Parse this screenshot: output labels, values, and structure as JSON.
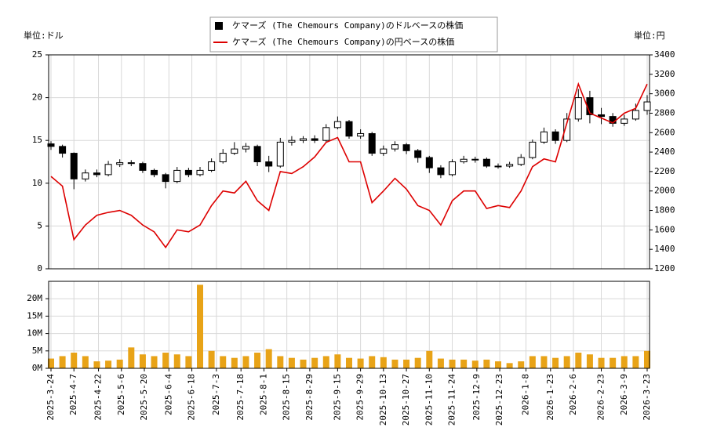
{
  "chart_data": [
    {
      "type": "candlestick",
      "ylabel": "単位:ドル",
      "y2label": "単位:円",
      "x": [
        "2025-3-24",
        "2025-3-31",
        "2025-4-7",
        "2025-4-14",
        "2025-4-21",
        "2025-4-28",
        "2025-5-5",
        "2025-5-12",
        "2025-5-19",
        "2025-5-26",
        "2025-6-2",
        "2025-6-9",
        "2025-6-16",
        "2025-6-23",
        "2025-6-30",
        "2025-7-7",
        "2025-7-14",
        "2025-7-21",
        "2025-7-28",
        "2025-8-4",
        "2025-8-11",
        "2025-8-18",
        "2025-8-25",
        "2025-9-1",
        "2025-9-8",
        "2025-9-15",
        "2025-9-22",
        "2025-9-29",
        "2025-10-6",
        "2025-10-13",
        "2025-10-20",
        "2025-10-27",
        "2025-11-3",
        "2025-11-10",
        "2025-11-17",
        "2025-11-24",
        "2025-12-1",
        "2025-12-8",
        "2025-12-15",
        "2025-12-22",
        "2025-12-29",
        "2026-1-5",
        "2026-1-12",
        "2026-1-19",
        "2026-1-26",
        "2026-2-2",
        "2026-2-9",
        "2026-2-16",
        "2026-2-23",
        "2026-3-2",
        "2026-3-9",
        "2026-3-16",
        "2026-3-23"
      ],
      "series": [
        {
          "name": "ケマーズ (The Chemours Company)のドルベースの株価",
          "color": "#000000",
          "open": [
            14.6,
            14.3,
            13.5,
            10.5,
            11.2,
            11.0,
            12.2,
            12.4,
            12.3,
            11.5,
            11.0,
            10.2,
            11.5,
            11.0,
            11.5,
            12.5,
            13.5,
            14.0,
            14.3,
            12.5,
            12.0,
            14.8,
            15.0,
            15.2,
            15.0,
            16.5,
            17.2,
            15.5,
            15.8,
            13.5,
            14.0,
            14.5,
            13.8,
            13.0,
            11.8,
            11.0,
            12.5,
            12.8,
            12.8,
            12.0,
            12.0,
            12.2,
            13.0,
            14.8,
            16.0,
            15.0,
            17.5,
            20.0,
            18.0,
            17.8,
            17.0,
            17.5,
            18.5
          ],
          "high": [
            14.9,
            14.5,
            13.6,
            11.6,
            11.6,
            12.6,
            12.8,
            12.7,
            12.5,
            11.7,
            11.2,
            11.9,
            11.8,
            11.9,
            12.9,
            14.0,
            14.8,
            14.7,
            14.5,
            13.2,
            15.3,
            15.5,
            15.5,
            15.6,
            16.9,
            17.8,
            17.4,
            16.3,
            16.0,
            14.4,
            14.9,
            14.7,
            14.0,
            13.2,
            12.1,
            12.8,
            13.2,
            13.1,
            13.0,
            12.3,
            12.5,
            13.4,
            15.1,
            16.5,
            16.3,
            18.2,
            21.0,
            20.8,
            18.8,
            18.2,
            18.0,
            19.3,
            20.3
          ],
          "low": [
            13.9,
            13.0,
            9.3,
            10.2,
            10.7,
            10.8,
            11.9,
            12.0,
            11.2,
            10.7,
            9.4,
            10.0,
            10.7,
            10.8,
            11.3,
            12.3,
            13.3,
            13.6,
            12.0,
            11.3,
            11.8,
            14.4,
            14.7,
            14.7,
            14.8,
            16.3,
            15.2,
            15.2,
            13.2,
            13.2,
            13.7,
            13.4,
            12.4,
            11.2,
            10.6,
            10.8,
            12.3,
            12.4,
            11.8,
            11.7,
            11.8,
            12.0,
            12.8,
            14.6,
            14.6,
            14.8,
            17.2,
            17.0,
            16.9,
            16.6,
            16.7,
            17.3,
            18.0
          ],
          "close": [
            14.3,
            13.5,
            10.5,
            11.2,
            11.0,
            12.2,
            12.4,
            12.3,
            11.5,
            11.0,
            10.2,
            11.5,
            11.0,
            11.5,
            12.5,
            13.5,
            14.0,
            14.3,
            12.5,
            12.0,
            14.8,
            15.0,
            15.2,
            15.0,
            16.5,
            17.2,
            15.5,
            15.8,
            13.5,
            14.0,
            14.5,
            13.8,
            13.0,
            11.8,
            11.0,
            12.5,
            12.8,
            12.8,
            12.0,
            12.0,
            12.2,
            13.0,
            14.8,
            16.0,
            15.0,
            17.5,
            20.0,
            18.0,
            17.8,
            17.0,
            17.5,
            18.5,
            19.5
          ]
        },
        {
          "name": "ケマーズ (The Chemours Company)の円ベースの株価",
          "color": "#dd0000",
          "axis": "y2",
          "values": [
            2150,
            2050,
            1500,
            1650,
            1750,
            1780,
            1800,
            1750,
            1650,
            1580,
            1420,
            1600,
            1580,
            1650,
            1850,
            2000,
            1980,
            2100,
            1900,
            1800,
            2200,
            2180,
            2250,
            2350,
            2500,
            2550,
            2300,
            2300,
            1880,
            2000,
            2130,
            2020,
            1850,
            1800,
            1650,
            1900,
            2000,
            2000,
            1820,
            1850,
            1830,
            2000,
            2250,
            2330,
            2300,
            2700,
            3100,
            2800,
            2750,
            2700,
            2800,
            2850,
            3100
          ]
        }
      ],
      "ylim": [
        0,
        25
      ],
      "yticks": [
        0,
        5,
        10,
        15,
        20,
        25
      ],
      "y2lim": [
        1200,
        3400
      ],
      "y2ticks": [
        1200,
        1400,
        1600,
        1800,
        2000,
        2200,
        2400,
        2600,
        2800,
        3000,
        3200,
        3400
      ],
      "grid": true
    },
    {
      "type": "bar",
      "color": "#e8a317",
      "x": [
        "2025-3-24",
        "2025-3-31",
        "2025-4-7",
        "2025-4-14",
        "2025-4-21",
        "2025-4-28",
        "2025-5-5",
        "2025-5-12",
        "2025-5-19",
        "2025-5-26",
        "2025-6-2",
        "2025-6-9",
        "2025-6-16",
        "2025-6-23",
        "2025-6-30",
        "2025-7-7",
        "2025-7-14",
        "2025-7-21",
        "2025-7-28",
        "2025-8-4",
        "2025-8-11",
        "2025-8-18",
        "2025-8-25",
        "2025-9-1",
        "2025-9-8",
        "2025-9-15",
        "2025-9-22",
        "2025-9-29",
        "2025-10-6",
        "2025-10-13",
        "2025-10-20",
        "2025-10-27",
        "2025-11-3",
        "2025-11-10",
        "2025-11-17",
        "2025-11-24",
        "2025-12-1",
        "2025-12-8",
        "2025-12-15",
        "2025-12-22",
        "2025-12-29",
        "2026-1-5",
        "2026-1-12",
        "2026-1-19",
        "2026-1-26",
        "2026-2-2",
        "2026-2-9",
        "2026-2-16",
        "2026-2-23",
        "2026-3-2",
        "2026-3-9",
        "2026-3-16",
        "2026-3-23"
      ],
      "values": [
        2800000,
        3500000,
        4500000,
        3500000,
        2000000,
        2200000,
        2500000,
        6000000,
        4000000,
        3500000,
        4500000,
        4000000,
        3500000,
        24000000,
        5000000,
        3500000,
        3000000,
        3500000,
        4500000,
        5500000,
        3500000,
        3000000,
        2500000,
        3000000,
        3500000,
        4000000,
        3000000,
        2800000,
        3500000,
        3200000,
        2500000,
        2500000,
        3000000,
        5000000,
        2800000,
        2500000,
        2500000,
        2200000,
        2500000,
        2000000,
        1500000,
        2000000,
        3500000,
        3500000,
        3000000,
        3500000,
        4500000,
        4000000,
        3000000,
        3000000,
        3500000,
        3500000,
        5000000
      ],
      "ylim": [
        0,
        25000000
      ],
      "yticks": [
        {
          "value": 0,
          "label": "0M"
        },
        {
          "value": 5000000,
          "label": "5M"
        },
        {
          "value": 10000000,
          "label": "10M"
        },
        {
          "value": 15000000,
          "label": "15M"
        },
        {
          "value": 20000000,
          "label": "20M"
        }
      ],
      "xticks": [
        "2025-3-24",
        "2025-4-7",
        "2025-4-22",
        "2025-5-6",
        "2025-5-20",
        "2025-6-4",
        "2025-6-18",
        "2025-7-3",
        "2025-7-18",
        "2025-8-1",
        "2025-8-15",
        "2025-8-29",
        "2025-9-15",
        "2025-9-29",
        "2025-10-13",
        "2025-10-27",
        "2025-11-10",
        "2025-11-24",
        "2025-12-9",
        "2025-12-23",
        "2026-1-8",
        "2026-1-23",
        "2026-2-6",
        "2026-2-23",
        "2026-3-9",
        "2026-3-23"
      ],
      "grid": true
    }
  ]
}
